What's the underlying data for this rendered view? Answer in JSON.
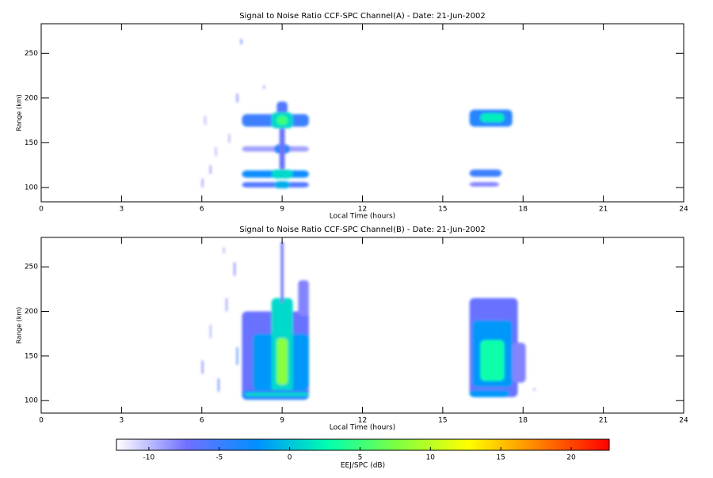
{
  "chart_data": [
    {
      "type": "heatmap",
      "title": "Signal to Noise Ratio CCF-SPC Channel(A) - Date: 21-Jun-2002",
      "xlabel": "Local Time (hours)",
      "ylabel": "Range (km)",
      "xlim": [
        0,
        24
      ],
      "xticks": [
        0,
        3,
        6,
        9,
        12,
        15,
        18,
        21,
        24
      ],
      "ylim": [
        84,
        283
      ],
      "yticks": [
        100,
        150,
        200,
        250
      ],
      "x_start": [
        7.5,
        7.5,
        8.7,
        8.9,
        8.8,
        8.6,
        8.8,
        7.5,
        8.6,
        7.5,
        8.7,
        16,
        16.4,
        16,
        16,
        6.1,
        6.3,
        6.5,
        7.3,
        7.45,
        8.3,
        6.0,
        7.0
      ],
      "x_end": [
        10,
        10,
        9.3,
        9.1,
        9.2,
        9.4,
        9.2,
        10,
        9.4,
        10,
        9.3,
        17.6,
        17.3,
        17.2,
        17.1,
        6.15,
        6.35,
        6.55,
        7.35,
        7.5,
        8.35,
        6.05,
        7.05
      ],
      "range_start": [
        168,
        140,
        138,
        120,
        182,
        166,
        170,
        111,
        110,
        100,
        99,
        168,
        173,
        112,
        101,
        170,
        115,
        135,
        195,
        260,
        210,
        100,
        150
      ],
      "range_end": [
        182,
        146,
        148,
        168,
        196,
        184,
        180,
        119,
        120,
        106,
        107,
        187,
        183,
        120,
        106,
        180,
        125,
        145,
        205,
        266,
        214,
        110,
        160
      ],
      "values": [
        -5,
        -9,
        -4,
        -7,
        -6,
        1,
        5,
        -3,
        1,
        -6,
        -1,
        -4,
        2,
        -5,
        -8,
        -9,
        -8,
        -9,
        -7,
        -6,
        -8,
        -8,
        -9
      ]
    },
    {
      "type": "heatmap",
      "title": "Signal to Noise Ratio CCF-SPC Channel(B) - Date: 21-Jun-2002",
      "xlabel": "Local Time (hours)",
      "ylabel": "Range (km)",
      "xlim": [
        0,
        24
      ],
      "xticks": [
        0,
        3,
        6,
        9,
        12,
        15,
        18,
        21,
        24
      ],
      "ylim": [
        86,
        283
      ],
      "yticks": [
        100,
        150,
        200,
        250
      ],
      "x_start": [
        7.5,
        7.9,
        8.6,
        8.8,
        8.95,
        9.6,
        7.5,
        7.6,
        16,
        16.1,
        16.4,
        16,
        17.6,
        6.0,
        6.3,
        6.6,
        6.9,
        7.2,
        6.8,
        7.3,
        18.4
      ],
      "x_end": [
        10,
        10,
        9.4,
        9.2,
        9.05,
        10,
        10,
        10,
        17.8,
        17.6,
        17.3,
        17.5,
        18.1,
        6.05,
        6.35,
        6.65,
        6.95,
        7.25,
        6.85,
        7.35,
        18.45
      ],
      "range_start": [
        104,
        112,
        110,
        118,
        210,
        195,
        101,
        105,
        104,
        115,
        122,
        104,
        120,
        130,
        170,
        110,
        200,
        240,
        265,
        140,
        111
      ],
      "range_end": [
        200,
        175,
        215,
        170,
        278,
        235,
        112,
        109,
        215,
        190,
        168,
        112,
        165,
        145,
        185,
        125,
        215,
        255,
        272,
        160,
        114
      ],
      "values": [
        -7,
        -2,
        1,
        8,
        -7,
        -8,
        -4,
        1,
        -7,
        -2,
        3,
        -2,
        -8,
        -7,
        -9,
        -6,
        -8,
        -7,
        -9,
        -5,
        -8
      ]
    },
    {
      "type": "colorbar",
      "label": "EEJ/SPC (dB)",
      "clim": [
        -12.3,
        22.7
      ],
      "ticks": [
        -10,
        -5,
        0,
        5,
        10,
        15,
        20
      ],
      "colormap": [
        "#ffffff",
        "#7070ff",
        "#0090ff",
        "#00ffb0",
        "#80ff40",
        "#ffff00",
        "#ff8000",
        "#ff0000"
      ]
    }
  ]
}
